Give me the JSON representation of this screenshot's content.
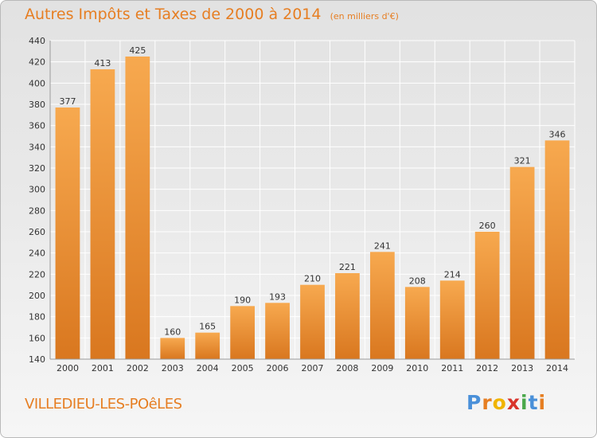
{
  "chart_data": {
    "type": "bar",
    "title": "Autres Impôts et Taxes de 2000 à 2014",
    "subtitle": "(en milliers d'€)",
    "categories": [
      "2000",
      "2001",
      "2002",
      "2003",
      "2004",
      "2005",
      "2006",
      "2007",
      "2008",
      "2009",
      "2010",
      "2011",
      "2012",
      "2013",
      "2014"
    ],
    "values": [
      377,
      413,
      425,
      160,
      165,
      190,
      193,
      210,
      221,
      241,
      208,
      214,
      260,
      321,
      346
    ],
    "ylim": [
      140,
      440
    ],
    "yticks": [
      140,
      160,
      180,
      200,
      220,
      240,
      260,
      280,
      300,
      320,
      340,
      360,
      380,
      400,
      420,
      440
    ],
    "grid": true,
    "legend": "none",
    "colors": {
      "bar_light": "#f7a94f",
      "bar_dark": "#d9771f",
      "text": "#e67e22",
      "axis_text": "#333333"
    }
  },
  "footer": {
    "place": "VILLEDIEU-LES-POêLES",
    "logo": {
      "text": "Proxiti",
      "letter_colors": [
        "#4a90d9",
        "#e67e22",
        "#f0b400",
        "#d9342b",
        "#4aa84a",
        "#4a90d9",
        "#e67e22"
      ]
    }
  }
}
